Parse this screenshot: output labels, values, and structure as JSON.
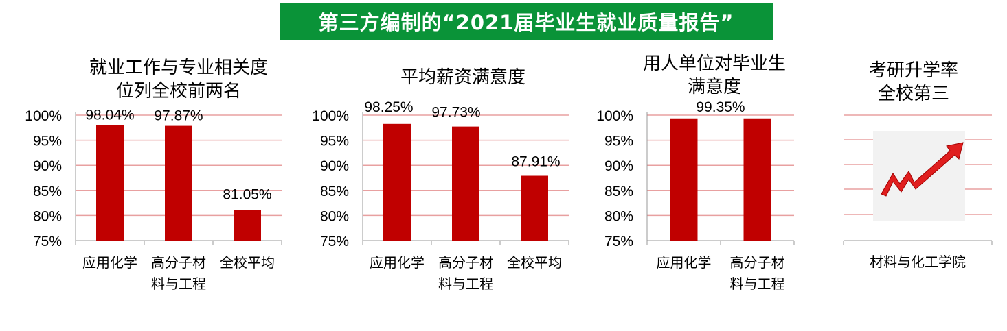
{
  "banner": "第三方编制的“2021届毕业生就业质量报告”",
  "colors": {
    "banner": "#0a9338",
    "bar": "#c00000",
    "grid": "#e8a0a0"
  },
  "panels": [
    {
      "title_lines": [
        "就业工作与专业相关度",
        "位列全校前两名"
      ]
    },
    {
      "title_lines": [
        "平均薪资满意度"
      ]
    },
    {
      "title_lines": [
        "用人单位对毕业生",
        "满意度"
      ]
    },
    {
      "title_lines": [
        "考研升学率",
        "全校第三"
      ],
      "category": "材料与化工学院",
      "icon": "rising-arrow-icon"
    }
  ],
  "chart_data": [
    {
      "type": "bar",
      "categories": [
        [
          "应用化学"
        ],
        [
          "高分子材",
          "料与工程"
        ],
        [
          "全校平均"
        ]
      ],
      "values": [
        98.04,
        97.87,
        81.05
      ],
      "labels": [
        "98.04%",
        "97.87%",
        "81.05%"
      ],
      "ylim": [
        75,
        100
      ],
      "yticks": [
        "75%",
        "80%",
        "85%",
        "90%",
        "95%",
        "100%"
      ]
    },
    {
      "type": "bar",
      "categories": [
        [
          "应用化学"
        ],
        [
          "高分子材",
          "料与工程"
        ],
        [
          "全校平均"
        ]
      ],
      "values": [
        98.25,
        97.73,
        87.91
      ],
      "labels": [
        "98.25%",
        "97.73%",
        "87.91%"
      ],
      "ylim": [
        75,
        100
      ],
      "yticks": [
        "75%",
        "80%",
        "85%",
        "90%",
        "95%",
        "100%"
      ]
    },
    {
      "type": "bar",
      "categories": [
        [
          "应用化学"
        ],
        [
          "高分子材",
          "料与工程"
        ]
      ],
      "values": [
        99.35,
        99.35
      ],
      "labels": [
        "99.35%"
      ],
      "ylim": [
        75,
        100
      ],
      "yticks": [
        "75%",
        "80%",
        "85%",
        "90%",
        "95%",
        "100%"
      ]
    }
  ]
}
